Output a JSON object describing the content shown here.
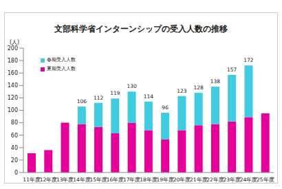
{
  "chart_data": {
    "type": "bar",
    "title": "文部科学省インターンシップの受入人数の推移",
    "y_label": "(人)",
    "categories": [
      "11年度",
      "12年度",
      "13年度",
      "14年度",
      "15年度",
      "16年度",
      "17年度",
      "18年度",
      "19年度",
      "20年度",
      "21年度",
      "22年度",
      "23年度",
      "24年度",
      "25年度"
    ],
    "series": [
      {
        "name": "夏期受入人数",
        "color": "#e6009a",
        "values": [
          31,
          36,
          80,
          78,
          73,
          63,
          80,
          68,
          53,
          68,
          76,
          78,
          82,
          89,
          95
        ]
      },
      {
        "name": "春期受入人数",
        "color": "#3fcbe0",
        "values": [
          0,
          0,
          0,
          28,
          39,
          56,
          50,
          46,
          43,
          55,
          52,
          60,
          75,
          83,
          0
        ]
      }
    ],
    "totals": [
      31,
      36,
      80,
      106,
      112,
      119,
      130,
      114,
      96,
      123,
      128,
      138,
      157,
      172,
      95
    ],
    "stacked": true,
    "ylim": [
      0,
      200
    ],
    "yticks": [
      0,
      20,
      40,
      60,
      80,
      100,
      120,
      140,
      160,
      180,
      200
    ],
    "grid": false,
    "legend": "upper left"
  }
}
